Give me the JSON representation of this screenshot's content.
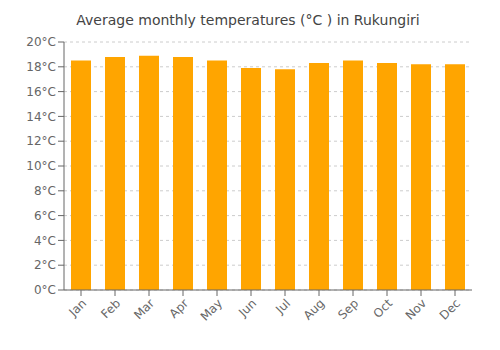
{
  "chart_data": {
    "type": "bar",
    "title": "Average monthly temperatures (°C ) in Rukungiri",
    "categories": [
      "Jan",
      "Feb",
      "Mar",
      "Apr",
      "May",
      "Jun",
      "Jul",
      "Aug",
      "Sep",
      "Oct",
      "Nov",
      "Dec"
    ],
    "values": [
      18.5,
      18.8,
      18.9,
      18.8,
      18.5,
      17.9,
      17.8,
      18.3,
      18.5,
      18.3,
      18.2,
      18.2
    ],
    "color": "#FFA500",
    "ylim": [
      0,
      20
    ],
    "yticks": [
      {
        "value": 0,
        "label": "0°C"
      },
      {
        "value": 2,
        "label": "2°C"
      },
      {
        "value": 4,
        "label": "4°C"
      },
      {
        "value": 6,
        "label": "6°C"
      },
      {
        "value": 8,
        "label": "8°C"
      },
      {
        "value": 10,
        "label": "10°C"
      },
      {
        "value": 12,
        "label": "12°C"
      },
      {
        "value": 14,
        "label": "14°C"
      },
      {
        "value": 16,
        "label": "16°C"
      },
      {
        "value": 18,
        "label": "18°C"
      },
      {
        "value": 20,
        "label": "20°C"
      }
    ],
    "grid": true
  }
}
